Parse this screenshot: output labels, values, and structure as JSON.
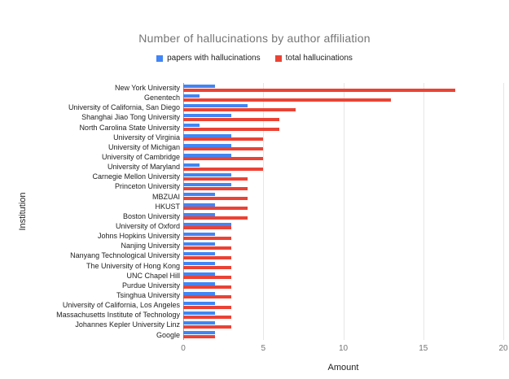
{
  "chart_data": {
    "type": "bar",
    "orientation": "horizontal",
    "title": "Number of hallucinations by author affiliation",
    "xlabel": "Amount",
    "ylabel": "Institution",
    "xlim": [
      0,
      20
    ],
    "xticks": [
      0,
      5,
      10,
      15,
      20
    ],
    "grid": "vertical-light",
    "legend_position": "top-center",
    "categories": [
      "New York University",
      "Genentech",
      "University of California, San Diego",
      "Shanghai Jiao Tong University",
      "North Carolina State University",
      "University of Virginia",
      "University of Michigan",
      "University of Cambridge",
      "University of Maryland",
      "Carnegie Mellon University",
      "Princeton University",
      "MBZUAI",
      "HKUST",
      "Boston University",
      "University of Oxford",
      "Johns Hopkins University",
      "Nanjing University",
      "Nanyang Technological University",
      "The University of Hong Kong",
      "UNC Chapel Hill",
      "Purdue University",
      "Tsinghua University",
      "University of California, Los Angeles",
      "Massachusetts Institute of Technology",
      "Johannes Kepler University Linz",
      "Google"
    ],
    "series": [
      {
        "name": "papers with hallucinations",
        "color": "#4285f4",
        "values": [
          2,
          1,
          4,
          3,
          1,
          3,
          3,
          3,
          1,
          3,
          3,
          2,
          2,
          2,
          3,
          2,
          2,
          2,
          2,
          2,
          2,
          2,
          2,
          2,
          2,
          2
        ]
      },
      {
        "name": "total hallucinations",
        "color": "#ea4335",
        "values": [
          17,
          13,
          7,
          6,
          6,
          5,
          5,
          5,
          5,
          4,
          4,
          4,
          4,
          4,
          3,
          3,
          3,
          3,
          3,
          3,
          3,
          3,
          3,
          3,
          3,
          2
        ]
      }
    ],
    "colors": {
      "title_text": "#757575",
      "axis_tick_text": "#757575",
      "label_text": "#212121",
      "gridline": "#e6e6e6",
      "axis_line": "#9e9e9e"
    }
  }
}
